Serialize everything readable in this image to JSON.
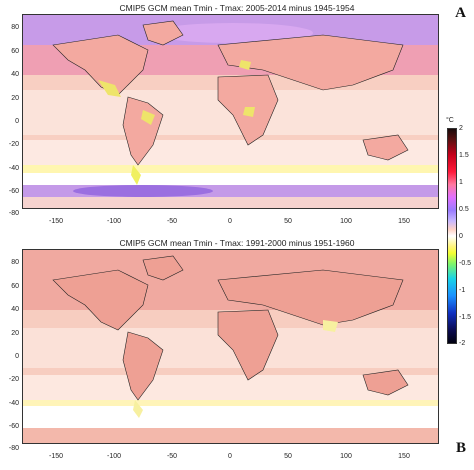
{
  "panels": [
    {
      "title": "CMIP5 GCM mean Tmin - Tmax: 2005-2014 minus 1945-1954",
      "label": "A"
    },
    {
      "title": "CMIP5 GCM mean Tmin - Tmax: 1991-2000 minus 1951-1960",
      "label": "B"
    }
  ],
  "axes": {
    "y_ticks": [
      "80",
      "60",
      "40",
      "20",
      "0",
      "-20",
      "-40",
      "-60",
      "-80"
    ],
    "x_ticks": [
      "-150",
      "-100",
      "-50",
      "0",
      "50",
      "100",
      "150"
    ]
  },
  "colorbar": {
    "unit": "°C",
    "ticks": [
      "2",
      "1.5",
      "1",
      "0.5",
      "0",
      "-0.5",
      "-1",
      "-1.5",
      "-2"
    ]
  },
  "colors": {
    "background_warm": "#f2b7a6",
    "warm_strong": "#e39090",
    "purple": "#b48cf0",
    "white": "#ffffff",
    "yellow": "#f5f530",
    "land_outline": "#222222"
  }
}
